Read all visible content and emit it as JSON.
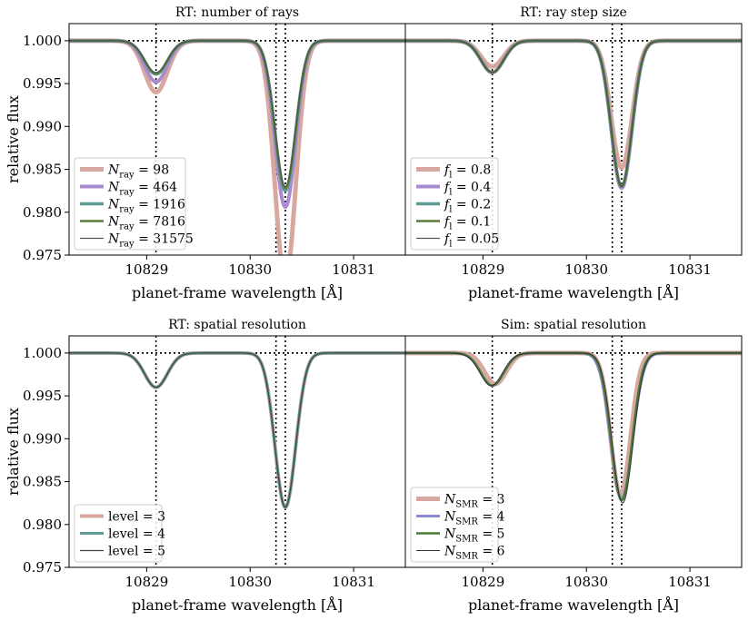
{
  "chart_data": [
    {
      "type": "line",
      "title": "RT: number of rays",
      "xlabel": "planet-frame wavelength [Å]",
      "ylabel": "relative flux",
      "xlim": [
        10828.25,
        10831.5
      ],
      "ylim": [
        0.975,
        1.002
      ],
      "xticks": [
        10829,
        10830,
        10831
      ],
      "yticks": [
        0.975,
        0.98,
        0.985,
        0.99,
        0.995,
        1.0
      ],
      "ref_lines": {
        "x": [
          10829.09,
          10830.25,
          10830.34
        ],
        "y": 1.0
      },
      "legend_position": "lower-left",
      "series": [
        {
          "name": "N_ray = 98",
          "legend_main": "N",
          "legend_sub": "ray",
          "legend_rest": " = 98",
          "color": "#d8a8a0",
          "width": 5,
          "lines": [
            {
              "center": 10829.09,
              "depth": 0.006,
              "sigma": 0.11
            },
            {
              "center": 10830.34,
              "depth": 0.028,
              "sigma": 0.1
            }
          ]
        },
        {
          "name": "N_ray = 464",
          "legend_main": "N",
          "legend_sub": "ray",
          "legend_rest": " = 464",
          "color": "#a98bd0",
          "width": 4,
          "lines": [
            {
              "center": 10829.09,
              "depth": 0.0048,
              "sigma": 0.11
            },
            {
              "center": 10830.34,
              "depth": 0.0194,
              "sigma": 0.1
            }
          ]
        },
        {
          "name": "N_ray = 1916",
          "legend_main": "N",
          "legend_sub": "ray",
          "legend_rest": " = 1916",
          "color": "#5f9a94",
          "width": 3.5,
          "lines": [
            {
              "center": 10829.09,
              "depth": 0.0039,
              "sigma": 0.11
            },
            {
              "center": 10830.34,
              "depth": 0.0175,
              "sigma": 0.1
            }
          ]
        },
        {
          "name": "N_ray = 7816",
          "legend_main": "N",
          "legend_sub": "ray",
          "legend_rest": " = 7816",
          "color": "#5a7a3a",
          "width": 2.5,
          "lines": [
            {
              "center": 10829.09,
              "depth": 0.0038,
              "sigma": 0.11
            },
            {
              "center": 10830.34,
              "depth": 0.0172,
              "sigma": 0.1
            }
          ]
        },
        {
          "name": "N_ray = 31575",
          "legend_main": "N",
          "legend_sub": "ray",
          "legend_rest": " = 31575",
          "color": "#555555",
          "width": 1.2,
          "lines": [
            {
              "center": 10829.09,
              "depth": 0.0037,
              "sigma": 0.11
            },
            {
              "center": 10830.34,
              "depth": 0.017,
              "sigma": 0.1
            }
          ]
        }
      ]
    },
    {
      "type": "line",
      "title": "RT: ray step size",
      "xlabel": "planet-frame wavelength [Å]",
      "ylabel": "",
      "xlim": [
        10828.25,
        10831.5
      ],
      "ylim": [
        0.975,
        1.002
      ],
      "xticks": [
        10829,
        10830,
        10831
      ],
      "yticks": [],
      "ref_lines": {
        "x": [
          10829.09,
          10830.25,
          10830.34
        ],
        "y": 1.0
      },
      "legend_position": "lower-left",
      "series": [
        {
          "name": "f_l = 0.8",
          "legend_main": "f",
          "legend_sub": "l",
          "legend_rest": " = 0.8",
          "color": "#d8a8a0",
          "width": 5,
          "lines": [
            {
              "center": 10829.09,
              "depth": 0.003,
              "sigma": 0.11
            },
            {
              "center": 10830.34,
              "depth": 0.0148,
              "sigma": 0.1
            }
          ]
        },
        {
          "name": "f_l = 0.4",
          "legend_main": "f",
          "legend_sub": "l",
          "legend_rest": " = 0.4",
          "color": "#a98bd0",
          "width": 4,
          "lines": [
            {
              "center": 10829.09,
              "depth": 0.0037,
              "sigma": 0.11
            },
            {
              "center": 10830.34,
              "depth": 0.0172,
              "sigma": 0.1
            }
          ]
        },
        {
          "name": "f_l = 0.2",
          "legend_main": "f",
          "legend_sub": "l",
          "legend_rest": " = 0.2",
          "color": "#5f9a94",
          "width": 3.5,
          "lines": [
            {
              "center": 10829.09,
              "depth": 0.0037,
              "sigma": 0.11
            },
            {
              "center": 10830.34,
              "depth": 0.017,
              "sigma": 0.1
            }
          ]
        },
        {
          "name": "f_l = 0.1",
          "legend_main": "f",
          "legend_sub": "l",
          "legend_rest": " = 0.1",
          "color": "#5a7a3a",
          "width": 2.5,
          "lines": [
            {
              "center": 10829.09,
              "depth": 0.0037,
              "sigma": 0.11
            },
            {
              "center": 10830.34,
              "depth": 0.017,
              "sigma": 0.1
            }
          ]
        },
        {
          "name": "f_l = 0.05",
          "legend_main": "f",
          "legend_sub": "l",
          "legend_rest": " = 0.05",
          "color": "#555555",
          "width": 1.2,
          "lines": [
            {
              "center": 10829.09,
              "depth": 0.0037,
              "sigma": 0.11
            },
            {
              "center": 10830.34,
              "depth": 0.017,
              "sigma": 0.1
            }
          ]
        }
      ]
    },
    {
      "type": "line",
      "title": "RT: spatial resolution",
      "xlabel": "planet-frame wavelength [Å]",
      "ylabel": "relative flux",
      "xlim": [
        10828.25,
        10831.5
      ],
      "ylim": [
        0.975,
        1.002
      ],
      "xticks": [
        10829,
        10830,
        10831
      ],
      "yticks": [
        0.975,
        0.98,
        0.985,
        0.99,
        0.995,
        1.0
      ],
      "ref_lines": {
        "x": [
          10829.09,
          10830.25,
          10830.34
        ],
        "y": 1.0
      },
      "legend_position": "lower-left",
      "series": [
        {
          "name": "level = 3",
          "legend_main": "level",
          "legend_sub": "",
          "legend_rest": " = 3",
          "color": "#d8a8a0",
          "width": 4,
          "lines": [
            {
              "center": 10829.09,
              "depth": 0.004,
              "sigma": 0.11
            },
            {
              "center": 10830.34,
              "depth": 0.018,
              "sigma": 0.1
            }
          ]
        },
        {
          "name": "level = 4",
          "legend_main": "level",
          "legend_sub": "",
          "legend_rest": " = 4",
          "color": "#5f9a94",
          "width": 3,
          "lines": [
            {
              "center": 10829.09,
              "depth": 0.004,
              "sigma": 0.11
            },
            {
              "center": 10830.34,
              "depth": 0.018,
              "sigma": 0.1
            }
          ]
        },
        {
          "name": "level = 5",
          "legend_main": "level",
          "legend_sub": "",
          "legend_rest": " = 5",
          "color": "#444444",
          "width": 1.2,
          "lines": [
            {
              "center": 10829.09,
              "depth": 0.004,
              "sigma": 0.11
            },
            {
              "center": 10830.34,
              "depth": 0.018,
              "sigma": 0.1
            }
          ]
        }
      ]
    },
    {
      "type": "line",
      "title": "Sim: spatial resolution",
      "xlabel": "planet-frame wavelength [Å]",
      "ylabel": "",
      "xlim": [
        10828.25,
        10831.5
      ],
      "ylim": [
        0.975,
        1.002
      ],
      "xticks": [
        10829,
        10830,
        10831
      ],
      "yticks": [],
      "ref_lines": {
        "x": [
          10829.09,
          10830.25,
          10830.34
        ],
        "y": 1.0
      },
      "legend_position": "lower-left",
      "series": [
        {
          "name": "N_SMR = 3",
          "legend_main": "N",
          "legend_sub": "SMR",
          "legend_rest": " = 3",
          "color": "#d8a8a0",
          "width": 5,
          "lines": [
            {
              "center": 10829.12,
              "depth": 0.0036,
              "sigma": 0.105
            },
            {
              "center": 10830.33,
              "depth": 0.0165,
              "sigma": 0.095
            }
          ]
        },
        {
          "name": "N_SMR = 4",
          "legend_main": "N",
          "legend_sub": "SMR",
          "legend_rest": " = 4",
          "color": "#8a8ad0",
          "width": 3,
          "lines": [
            {
              "center": 10829.09,
              "depth": 0.0038,
              "sigma": 0.11
            },
            {
              "center": 10830.34,
              "depth": 0.017,
              "sigma": 0.105
            }
          ]
        },
        {
          "name": "N_SMR = 5",
          "legend_main": "N",
          "legend_sub": "SMR",
          "legend_rest": " = 5",
          "color": "#4a7a35",
          "width": 2.5,
          "lines": [
            {
              "center": 10829.09,
              "depth": 0.0038,
              "sigma": 0.11
            },
            {
              "center": 10830.34,
              "depth": 0.0172,
              "sigma": 0.1
            }
          ]
        },
        {
          "name": "N_SMR = 6",
          "legend_main": "N",
          "legend_sub": "SMR",
          "legend_rest": " = 6",
          "color": "#333333",
          "width": 1,
          "lines": [
            {
              "center": 10829.08,
              "depth": 0.0038,
              "sigma": 0.11
            },
            {
              "center": 10830.35,
              "depth": 0.0175,
              "sigma": 0.1
            }
          ]
        }
      ]
    }
  ]
}
